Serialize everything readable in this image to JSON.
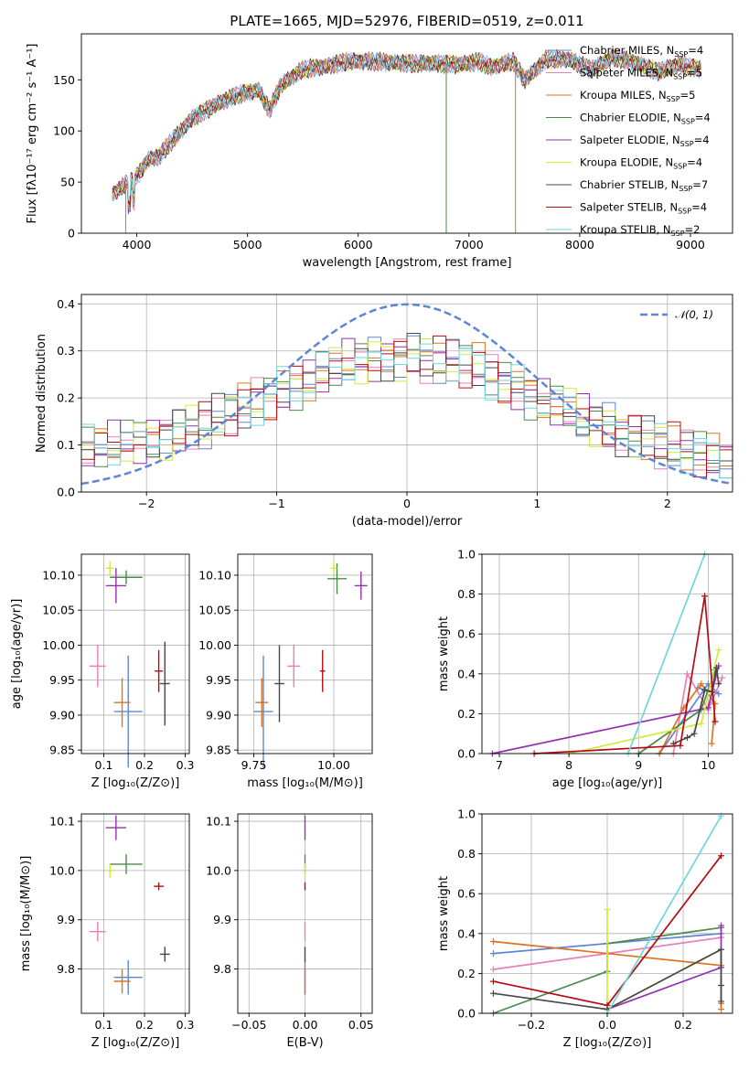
{
  "chart_data": [
    {
      "type": "line",
      "title": "PLATE=1665, MJD=52976, FIBERID=0519, z=0.011",
      "xlabel": "wavelength [Angstrom, rest frame]",
      "ylabel": "Flux [fλ10⁻¹⁷ erg cm⁻² s⁻¹ A⁻¹]",
      "xlim": [
        3500,
        9380
      ],
      "ylim": [
        0,
        195
      ],
      "xticks": [
        4000,
        5000,
        6000,
        7000,
        8000,
        9000
      ],
      "yticks": [
        0,
        50,
        100,
        150
      ],
      "grid": false,
      "legend_position": "right",
      "spectrum_anchors": {
        "wavelength": [
          3780,
          3900,
          4000,
          4100,
          4200,
          4300,
          4400,
          4500,
          4700,
          4900,
          5100,
          5200,
          5300,
          5500,
          5700,
          5900,
          6100,
          6300,
          6500,
          6700,
          6900,
          7100,
          7200,
          7300,
          7400,
          7500,
          7700,
          7900,
          8100,
          8300,
          8500,
          8700,
          8900,
          9100
        ],
        "flux": [
          38,
          48,
          55,
          72,
          75,
          88,
          100,
          112,
          125,
          135,
          140,
          120,
          145,
          160,
          163,
          168,
          168,
          167,
          166,
          166,
          165,
          168,
          162,
          165,
          168,
          150,
          170,
          170,
          160,
          172,
          167,
          158,
          165,
          160
        ]
      },
      "spectrum_drops": [
        {
          "wavelength": 3900,
          "flux": 0
        },
        {
          "wavelength": 6795,
          "flux": 0
        },
        {
          "wavelength": 7420,
          "flux": 0
        }
      ],
      "series": [
        {
          "name": "Chabrier MILES, N_SSP=4",
          "color": "#5f85d4"
        },
        {
          "name": "Salpeter MILES, N_SSP=5",
          "color": "#e87fb6"
        },
        {
          "name": "Kroupa MILES, N_SSP=5",
          "color": "#db7324"
        },
        {
          "name": "Chabrier ELODIE, N_SSP=4",
          "color": "#4c8a4c"
        },
        {
          "name": "Salpeter ELODIE, N_SSP=4",
          "color": "#9430ae"
        },
        {
          "name": "Kroupa ELODIE, N_SSP=4",
          "color": "#d2ea3c"
        },
        {
          "name": "Chabrier STELIB, N_SSP=7",
          "color": "#474747"
        },
        {
          "name": "Salpeter STELIB, N_SSP=4",
          "color": "#b40c12"
        },
        {
          "name": "Kroupa STELIB, N_SSP=2",
          "color": "#6fd6de"
        }
      ],
      "legend_entries": [
        {
          "pre": "Chabrier MILES, N",
          "sub": "SSP",
          "post": "=4"
        },
        {
          "pre": "Salpeter MILES, N",
          "sub": "SSP",
          "post": "=5"
        },
        {
          "pre": "Kroupa MILES, N",
          "sub": "SSP",
          "post": "=5"
        },
        {
          "pre": "Chabrier ELODIE, N",
          "sub": "SSP",
          "post": "=4"
        },
        {
          "pre": "Salpeter ELODIE, N",
          "sub": "SSP",
          "post": "=4"
        },
        {
          "pre": "Kroupa ELODIE, N",
          "sub": "SSP",
          "post": "=4"
        },
        {
          "pre": "Chabrier STELIB, N",
          "sub": "SSP",
          "post": "=7"
        },
        {
          "pre": "Salpeter STELIB, N",
          "sub": "SSP",
          "post": "=4"
        },
        {
          "pre": "Kroupa STELIB, N",
          "sub": "SSP",
          "post": "=2"
        }
      ]
    },
    {
      "type": "line",
      "xlabel": "(data-model)/error",
      "ylabel": "Normed distribution",
      "xlim": [
        -2.5,
        2.5
      ],
      "ylim": [
        0,
        0.42
      ],
      "xticks": [
        -2,
        -1,
        0,
        1,
        2
      ],
      "yticks": [
        0.0,
        0.1,
        0.2,
        0.3,
        0.4
      ],
      "grid": true,
      "legend_position": "top-right",
      "gaussian": {
        "name": "N(0,1)",
        "label": "𝒩(0, 1)",
        "mean": 0,
        "sigma": 1,
        "color": "#5f85d4"
      },
      "histogram_colors": [
        "#5f85d4",
        "#e87fb6",
        "#db7324",
        "#4c8a4c",
        "#9430ae",
        "#d2ea3c",
        "#474747",
        "#b40c12",
        "#6fd6de"
      ],
      "histogram_bin_width": 0.1,
      "histogram_envelope": {
        "x": [
          -2.5,
          -2.0,
          -1.5,
          -1.0,
          -0.5,
          0.0,
          0.5,
          1.0,
          1.5,
          2.0,
          2.5
        ],
        "y": [
          0.09,
          0.11,
          0.15,
          0.21,
          0.27,
          0.29,
          0.27,
          0.2,
          0.14,
          0.1,
          0.06
        ]
      }
    },
    {
      "type": "scatter",
      "xlabel": "Z [log₁₀(Z/Z⊙)]",
      "ylabel": "age  [log₁₀(age/yr)]",
      "xlim": [
        0.045,
        0.31
      ],
      "ylim": [
        9.845,
        10.13
      ],
      "xticks": [
        0.1,
        0.2,
        0.3
      ],
      "yticks": [
        9.85,
        9.9,
        9.95,
        10.0,
        10.05,
        10.1
      ],
      "grid": true,
      "points": [
        {
          "x": 0.16,
          "y": 9.905,
          "xerr": 0.035,
          "yerr": 0.08,
          "color": "#5f85d4"
        },
        {
          "x": 0.085,
          "y": 9.97,
          "xerr": 0.02,
          "yerr": 0.03,
          "color": "#e87fb6"
        },
        {
          "x": 0.145,
          "y": 9.918,
          "xerr": 0.02,
          "yerr": 0.035,
          "color": "#db7324"
        },
        {
          "x": 0.155,
          "y": 10.097,
          "xerr": 0.04,
          "yerr": 0.01,
          "color": "#4c8a4c"
        },
        {
          "x": 0.13,
          "y": 10.085,
          "xerr": 0.025,
          "yerr": 0.025,
          "color": "#9430ae"
        },
        {
          "x": 0.115,
          "y": 10.11,
          "xerr": 0.01,
          "yerr": 0.01,
          "color": "#d2ea3c"
        },
        {
          "x": 0.25,
          "y": 9.945,
          "xerr": 0.012,
          "yerr": 0.06,
          "color": "#474747"
        },
        {
          "x": 0.235,
          "y": 9.963,
          "xerr": 0.01,
          "yerr": 0.03,
          "color": "#b40c12"
        }
      ]
    },
    {
      "type": "scatter",
      "xlabel": "mass [log₁₀(M/M⊙)]",
      "ylabel": "",
      "xlim": [
        9.7,
        10.12
      ],
      "ylim": [
        9.845,
        10.13
      ],
      "xticks": [
        9.75,
        10.0
      ],
      "yticks": [
        9.85,
        9.9,
        9.95,
        10.0,
        10.05,
        10.1
      ],
      "grid": true,
      "points": [
        {
          "x": 9.78,
          "y": 9.905,
          "xerr": 0.03,
          "yerr": 0.08,
          "color": "#5f85d4"
        },
        {
          "x": 9.875,
          "y": 9.97,
          "xerr": 0.02,
          "yerr": 0.03,
          "color": "#e87fb6"
        },
        {
          "x": 9.775,
          "y": 9.918,
          "xerr": 0.02,
          "yerr": 0.035,
          "color": "#db7324"
        },
        {
          "x": 10.01,
          "y": 10.095,
          "xerr": 0.03,
          "yerr": 0.022,
          "color": "#4c8a4c"
        },
        {
          "x": 10.085,
          "y": 10.085,
          "xerr": 0.02,
          "yerr": 0.02,
          "color": "#9430ae"
        },
        {
          "x": 10.0,
          "y": 10.11,
          "xerr": 0.01,
          "yerr": 0.01,
          "color": "#d2ea3c"
        },
        {
          "x": 9.83,
          "y": 9.945,
          "xerr": 0.015,
          "yerr": 0.055,
          "color": "#474747"
        },
        {
          "x": 9.965,
          "y": 9.963,
          "xerr": 0.008,
          "yerr": 0.03,
          "color": "#b40c12"
        }
      ]
    },
    {
      "type": "line",
      "xlabel": "age  [log₁₀(age/yr)]",
      "ylabel": "mass weight",
      "xlim": [
        6.75,
        10.35
      ],
      "ylim": [
        0,
        1.0
      ],
      "xticks": [
        7,
        8,
        9,
        10
      ],
      "yticks": [
        0.0,
        0.2,
        0.4,
        0.6,
        0.8,
        1.0
      ],
      "grid": true,
      "series": [
        {
          "name": "Chabrier MILES",
          "color": "#5f85d4",
          "x": [
            9.3,
            10.0,
            10.15,
            9.85
          ],
          "y": [
            0.0,
            0.35,
            0.3,
            0.33
          ]
        },
        {
          "name": "Salpeter MILES",
          "color": "#e87fb6",
          "x": [
            9.5,
            9.7,
            10.0,
            10.2
          ],
          "y": [
            0.0,
            0.4,
            0.22,
            0.38
          ]
        },
        {
          "name": "Kroupa MILES",
          "color": "#db7324",
          "x": [
            9.3,
            9.65,
            9.9,
            10.1,
            10.05
          ],
          "y": [
            0.0,
            0.23,
            0.35,
            0.25,
            0.05
          ]
        },
        {
          "name": "Chabrier ELODIE",
          "color": "#4c8a4c",
          "x": [
            9.0,
            9.9,
            10.1
          ],
          "y": [
            0.0,
            0.22,
            0.42
          ]
        },
        {
          "name": "Salpeter ELODIE",
          "color": "#9430ae",
          "x": [
            6.9,
            10.0,
            10.15
          ],
          "y": [
            0.0,
            0.23,
            0.44
          ]
        },
        {
          "name": "Kroupa ELODIE",
          "color": "#d2ea3c",
          "x": [
            8.0,
            9.9,
            10.15
          ],
          "y": [
            0.0,
            0.15,
            0.52
          ]
        },
        {
          "name": "Chabrier STELIB",
          "color": "#474747",
          "x": [
            9.5,
            9.7,
            9.8,
            9.95,
            10.05,
            10.12,
            10.15
          ],
          "y": [
            0.05,
            0.08,
            0.1,
            0.32,
            0.31,
            0.43,
            0.35
          ]
        },
        {
          "name": "Salpeter STELIB",
          "color": "#b40c12",
          "x": [
            7.5,
            9.6,
            9.95,
            10.1
          ],
          "y": [
            0.0,
            0.04,
            0.79,
            0.16
          ]
        },
        {
          "name": "Kroupa STELIB",
          "color": "#6fd6de",
          "x": [
            8.85,
            9.95
          ],
          "y": [
            0.0,
            1.0
          ]
        }
      ]
    },
    {
      "type": "scatter",
      "xlabel": "Z [log₁₀(Z/Z⊙)]",
      "ylabel": "mass [log₁₀(M/M⊙)]",
      "xlim": [
        0.045,
        0.31
      ],
      "ylim": [
        9.71,
        10.115
      ],
      "xticks": [
        0.1,
        0.2,
        0.3
      ],
      "yticks": [
        9.8,
        9.9,
        10.0,
        10.1
      ],
      "grid": true,
      "points": [
        {
          "x": 0.16,
          "y": 9.783,
          "xerr": 0.035,
          "yerr": 0.035,
          "color": "#5f85d4"
        },
        {
          "x": 0.085,
          "y": 9.876,
          "xerr": 0.02,
          "yerr": 0.02,
          "color": "#e87fb6"
        },
        {
          "x": 0.145,
          "y": 9.775,
          "xerr": 0.02,
          "yerr": 0.025,
          "color": "#db7324"
        },
        {
          "x": 0.155,
          "y": 10.013,
          "xerr": 0.04,
          "yerr": 0.02,
          "color": "#4c8a4c"
        },
        {
          "x": 0.13,
          "y": 10.087,
          "xerr": 0.025,
          "yerr": 0.025,
          "color": "#9430ae"
        },
        {
          "x": 0.115,
          "y": 10.0,
          "xerr": 0.01,
          "yerr": 0.015,
          "color": "#d2ea3c"
        },
        {
          "x": 0.25,
          "y": 9.83,
          "xerr": 0.012,
          "yerr": 0.015,
          "color": "#474747"
        },
        {
          "x": 0.235,
          "y": 9.968,
          "xerr": 0.012,
          "yerr": 0.008,
          "color": "#b40c12"
        }
      ]
    },
    {
      "type": "scatter",
      "xlabel": "E(B-V)",
      "ylabel": "",
      "xlim": [
        -0.06,
        0.06
      ],
      "ylim": [
        9.71,
        10.115
      ],
      "xticks": [
        -0.05,
        0.0,
        0.05
      ],
      "yticks": [
        9.8,
        9.9,
        10.0,
        10.1
      ],
      "grid": true,
      "points": [
        {
          "x": 0,
          "y": 9.783,
          "yerr": 0.035,
          "color": "#5f85d4"
        },
        {
          "x": 0,
          "y": 9.876,
          "yerr": 0.02,
          "color": "#e87fb6"
        },
        {
          "x": 0,
          "y": 9.775,
          "yerr": 0.025,
          "color": "#db7324"
        },
        {
          "x": 0,
          "y": 10.013,
          "yerr": 0.02,
          "color": "#4c8a4c"
        },
        {
          "x": 0,
          "y": 10.087,
          "yerr": 0.025,
          "color": "#9430ae"
        },
        {
          "x": 0,
          "y": 10.0,
          "yerr": 0.015,
          "color": "#d2ea3c"
        },
        {
          "x": 0,
          "y": 9.83,
          "yerr": 0.015,
          "color": "#474747"
        },
        {
          "x": 0,
          "y": 9.968,
          "yerr": 0.008,
          "color": "#b40c12"
        }
      ]
    },
    {
      "type": "line",
      "xlabel": "Z [log₁₀(Z/Z⊙)]",
      "ylabel": "mass weight",
      "xlim": [
        -0.33,
        0.33
      ],
      "ylim": [
        0,
        1.0
      ],
      "xticks": [
        -0.2,
        0.0,
        0.2
      ],
      "yticks": [
        0.0,
        0.2,
        0.4,
        0.6,
        0.8,
        1.0
      ],
      "grid": true,
      "series": [
        {
          "name": "Chabrier MILES",
          "color": "#5f85d4",
          "x": [
            -0.3,
            0.0,
            0.3
          ],
          "y": [
            0.3,
            0.35,
            0.4
          ]
        },
        {
          "name": "Salpeter MILES",
          "color": "#e87fb6",
          "x": [
            -0.3,
            0.0,
            0.3
          ],
          "y": [
            0.22,
            0.3,
            0.38
          ]
        },
        {
          "name": "Kroupa MILES",
          "color": "#db7324",
          "x": [
            -0.3,
            0.3,
            0.3,
            0.3
          ],
          "y": [
            0.36,
            0.24,
            0.05,
            0.02
          ]
        },
        {
          "name": "Chabrier ELODIE",
          "color": "#4c8a4c",
          "x": [
            -0.3,
            0.0,
            0.0,
            0.3
          ],
          "y": [
            0.0,
            0.21,
            0.35,
            0.43
          ]
        },
        {
          "name": "Salpeter ELODIE",
          "color": "#9430ae",
          "x": [
            0.0,
            0.3,
            0.3
          ],
          "y": [
            0.02,
            0.23,
            0.44
          ]
        },
        {
          "name": "Kroupa ELODIE",
          "color": "#d2ea3c",
          "x": [
            0.0,
            0.0,
            0.3
          ],
          "y": [
            0.52,
            0.02,
            0.32
          ]
        },
        {
          "name": "Chabrier STELIB",
          "color": "#474747",
          "x": [
            -0.3,
            0.0,
            0.3,
            0.3,
            0.3
          ],
          "y": [
            0.1,
            0.02,
            0.32,
            0.14,
            0.06
          ]
        },
        {
          "name": "Salpeter STELIB",
          "color": "#b40c12",
          "x": [
            -0.3,
            0.0,
            0.3
          ],
          "y": [
            0.16,
            0.04,
            0.79
          ]
        },
        {
          "name": "Kroupa STELIB",
          "color": "#6fd6de",
          "x": [
            0.0,
            0.3
          ],
          "y": [
            0.0,
            0.99
          ]
        }
      ]
    }
  ]
}
